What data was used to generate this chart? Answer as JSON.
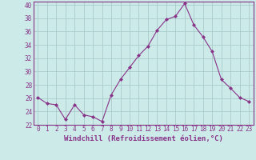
{
  "x": [
    0,
    1,
    2,
    3,
    4,
    5,
    6,
    7,
    8,
    9,
    10,
    11,
    12,
    13,
    14,
    15,
    16,
    17,
    18,
    19,
    20,
    21,
    22,
    23
  ],
  "y": [
    26.1,
    25.2,
    25.0,
    22.8,
    25.0,
    23.5,
    23.2,
    22.5,
    26.5,
    28.8,
    30.6,
    32.4,
    33.8,
    36.2,
    37.8,
    38.3,
    40.2,
    37.0,
    35.2,
    33.0,
    28.8,
    27.5,
    26.1,
    25.5
  ],
  "line_color": "#883388",
  "marker": "D",
  "marker_size": 2.0,
  "bg_color": "#cceae8",
  "grid_color": "#aacccc",
  "xlabel": "Windchill (Refroidissement éolien,°C)",
  "xlim_left": -0.5,
  "xlim_right": 23.5,
  "ylim_bottom": 22,
  "ylim_top": 40.5,
  "yticks": [
    22,
    24,
    26,
    28,
    30,
    32,
    34,
    36,
    38,
    40
  ],
  "xticks": [
    0,
    1,
    2,
    3,
    4,
    5,
    6,
    7,
    8,
    9,
    10,
    11,
    12,
    13,
    14,
    15,
    16,
    17,
    18,
    19,
    20,
    21,
    22,
    23
  ],
  "tick_label_fontsize": 5.5,
  "xlabel_fontsize": 6.5
}
